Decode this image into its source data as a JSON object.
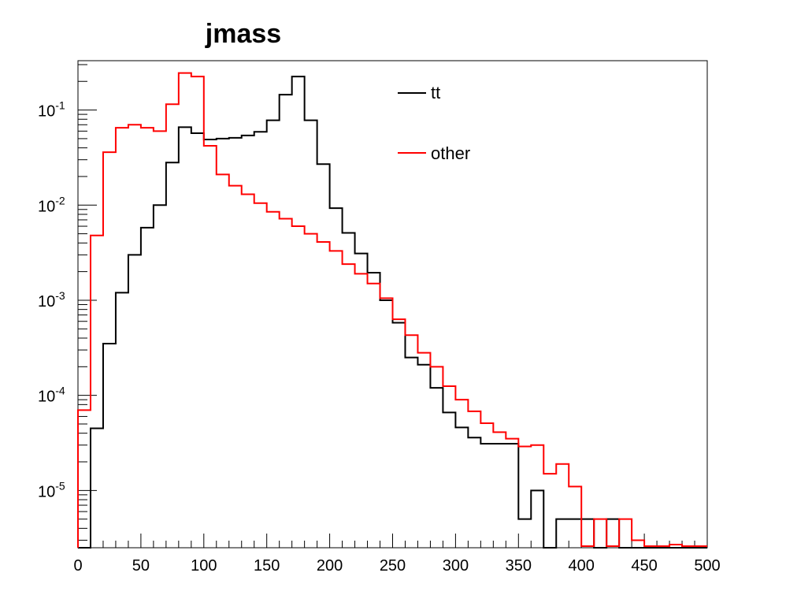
{
  "chart_data": {
    "type": "histogram",
    "title": "jmass",
    "xlabel": "",
    "ylabel": "",
    "xlim": [
      0,
      500
    ],
    "ylim": [
      2.5e-06,
      0.33
    ],
    "yscale": "log",
    "grid": false,
    "legend_position": "top-right",
    "bin_width": 10,
    "x_tick_labels": [
      "0",
      "50",
      "100",
      "150",
      "200",
      "250",
      "300",
      "350",
      "400",
      "450",
      "500"
    ],
    "y_tick_labels": [
      {
        "base": "10",
        "exp": "-1"
      },
      {
        "base": "10",
        "exp": "-2"
      },
      {
        "base": "10",
        "exp": "-3"
      },
      {
        "base": "10",
        "exp": "-4"
      },
      {
        "base": "10",
        "exp": "-5"
      }
    ],
    "series": [
      {
        "name": "tt",
        "color": "#000000",
        "values": [
          0,
          4.5e-05,
          0.00035,
          0.0012,
          0.003,
          0.0058,
          0.01,
          0.028,
          0.066,
          0.057,
          0.049,
          0.05,
          0.051,
          0.054,
          0.059,
          0.078,
          0.145,
          0.225,
          0.078,
          0.027,
          0.0093,
          0.0051,
          0.0031,
          0.00195,
          0.001,
          0.00058,
          0.00025,
          0.00021,
          0.00012,
          6.6e-05,
          4.6e-05,
          3.6e-05,
          3.1e-05,
          3.1e-05,
          3.1e-05,
          5e-06,
          1e-05,
          0,
          5e-06,
          5e-06,
          5e-06,
          0,
          5e-06,
          0,
          0,
          0,
          0,
          0,
          0,
          0
        ]
      },
      {
        "name": "other",
        "color": "#ff0000",
        "values": [
          7e-05,
          0.0048,
          0.036,
          0.065,
          0.07,
          0.065,
          0.06,
          0.115,
          0.245,
          0.225,
          0.042,
          0.021,
          0.016,
          0.013,
          0.0105,
          0.0085,
          0.0072,
          0.006,
          0.005,
          0.0041,
          0.0033,
          0.0024,
          0.0019,
          0.0015,
          0.00105,
          0.00063,
          0.00043,
          0.00028,
          0.0002,
          0.000125,
          9e-05,
          6.8e-05,
          5.1e-05,
          4.1e-05,
          3.5e-05,
          2.9e-05,
          3e-05,
          1.5e-05,
          1.9e-05,
          1.1e-05,
          2.6e-06,
          5e-06,
          2.6e-06,
          5e-06,
          3e-06,
          2.6e-06,
          2.6e-06,
          2.7e-06,
          2.6e-06,
          2.6e-06
        ]
      }
    ]
  }
}
